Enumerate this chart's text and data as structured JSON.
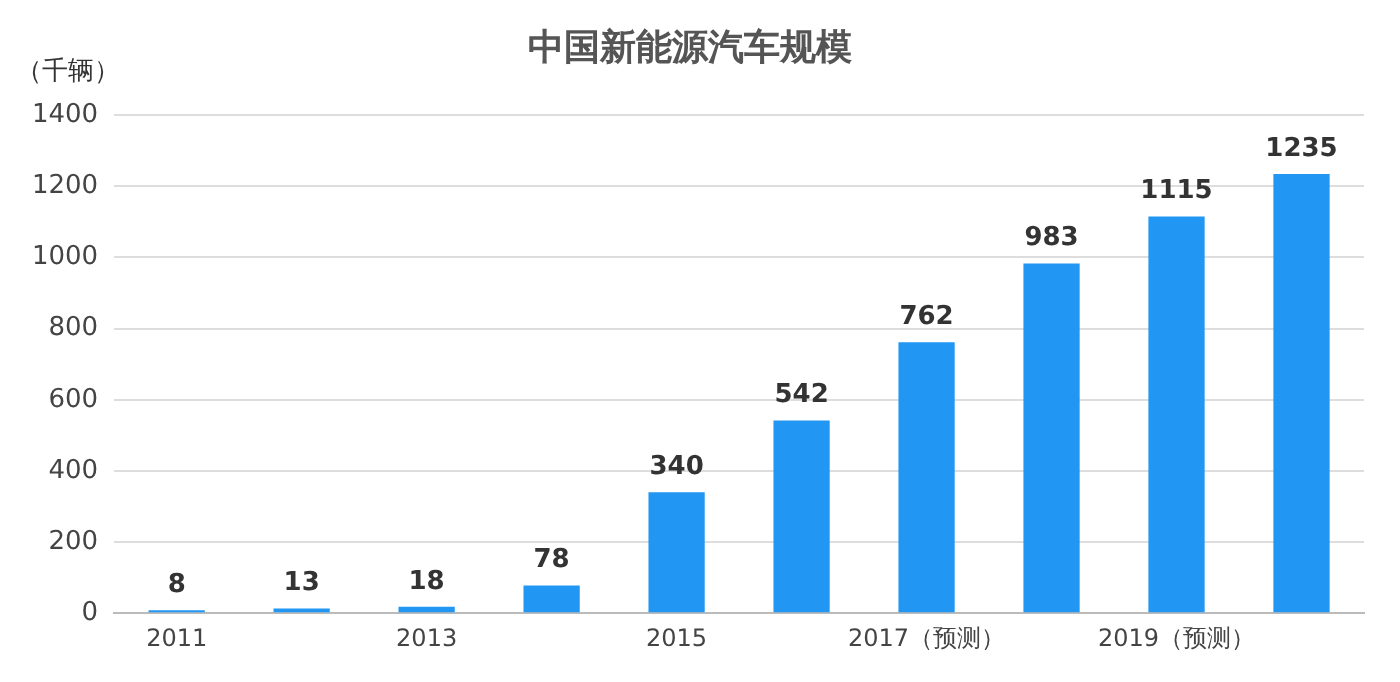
{
  "chart_data": {
    "type": "bar",
    "title": "中国新能源汽车规模",
    "ylabel": "（千辆）",
    "categories": [
      "2011",
      null,
      "2013",
      null,
      "2015",
      null,
      "2017（预测）",
      null,
      "2019（预测）",
      null
    ],
    "values": [
      8,
      13,
      18,
      78,
      340,
      542,
      762,
      983,
      1115,
      1235
    ],
    "color": "#2196f3",
    "ylim": [
      0,
      1400
    ],
    "yticks": [
      0,
      200,
      400,
      600,
      800,
      1000,
      1200,
      1400
    ],
    "grid": "y",
    "data_labels": true,
    "legend": false
  }
}
